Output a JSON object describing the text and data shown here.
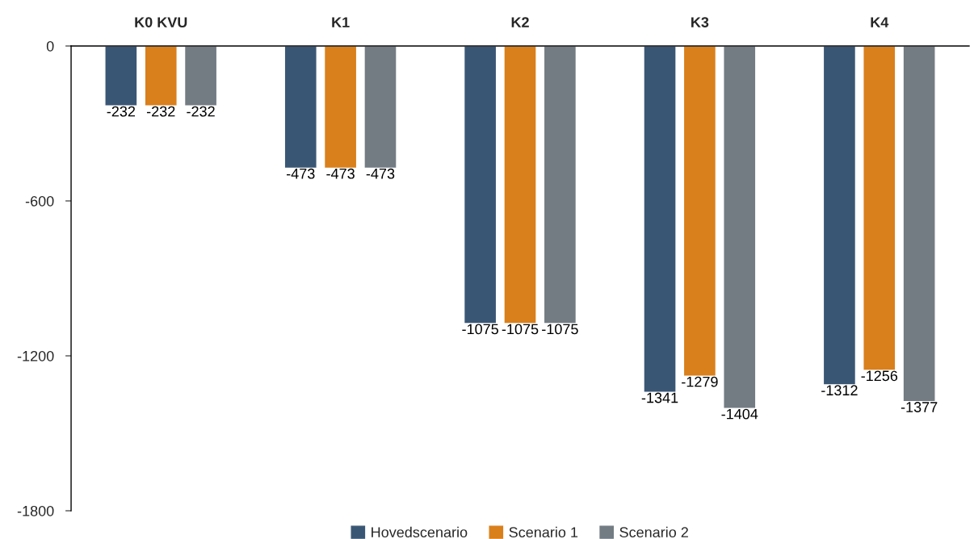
{
  "chart_data": {
    "type": "bar",
    "categories": [
      "K0 KVU",
      "K1",
      "K2",
      "K3",
      "K4"
    ],
    "series": [
      {
        "name": "Hovedscenario",
        "color": "#3a5675",
        "values": [
          -232,
          -473,
          -1075,
          -1341,
          -1312
        ]
      },
      {
        "name": "Scenario 1",
        "color": "#d97f1b",
        "values": [
          -232,
          -473,
          -1075,
          -1279,
          -1256
        ]
      },
      {
        "name": "Scenario 2",
        "color": "#737b83",
        "values": [
          -232,
          -473,
          -1075,
          -1404,
          -1377
        ]
      }
    ],
    "ylim": [
      -1800,
      0
    ],
    "yticks": [
      0,
      -600,
      -1200,
      -1800
    ],
    "data_labels": true,
    "grid": false,
    "legend": "bottom"
  }
}
